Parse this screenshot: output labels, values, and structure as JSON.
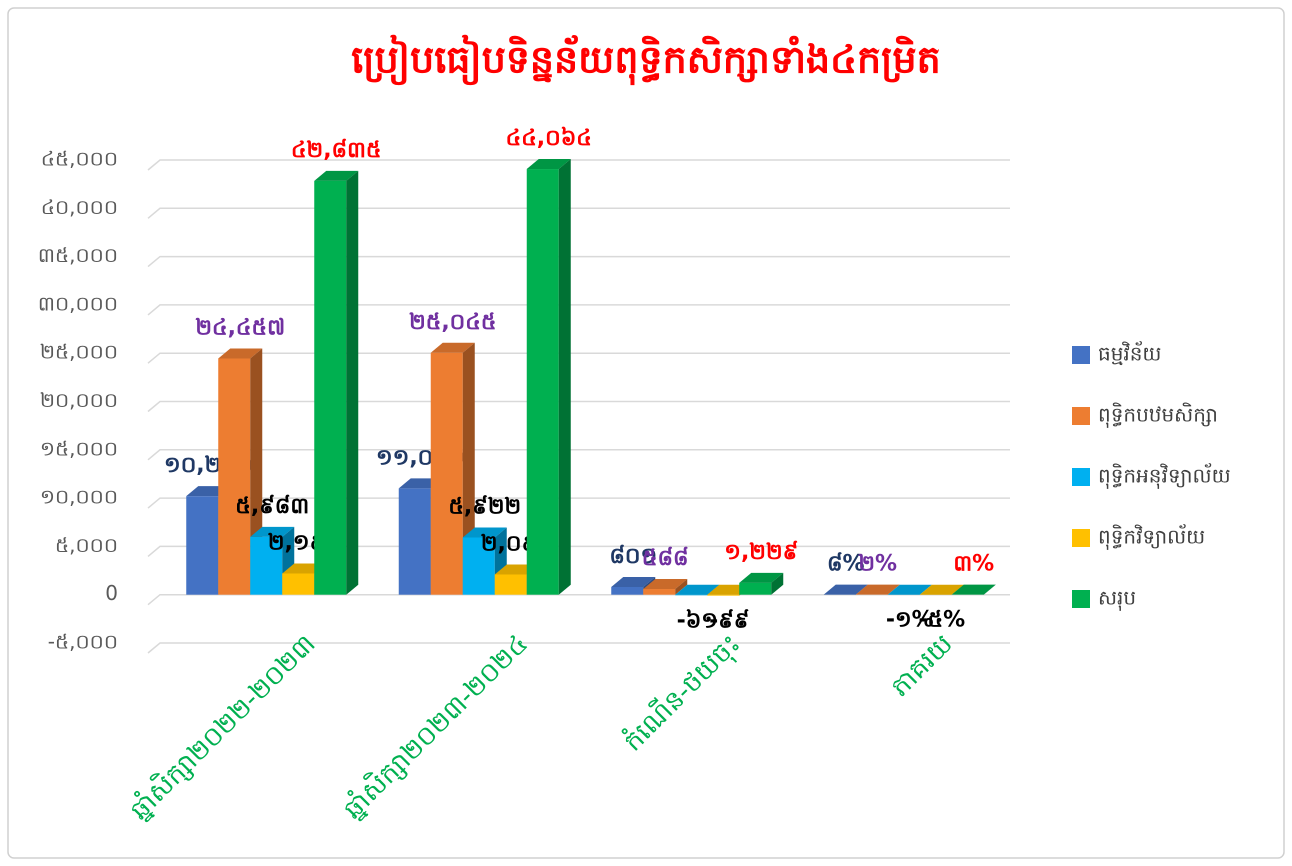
{
  "chart_data": {
    "type": "bar3d",
    "title": "ប្រៀបធៀបទិន្នន័យពុទ្ធិកសិក្សាទាំង៤កម្រិត",
    "categories": [
      "ឆ្នាំសិក្សា២០២២-២០២៣",
      "ឆ្នាំសិក្សា២០២៣-២០២៤",
      "កំណើន-ថយចុះ",
      "ភាគរយ"
    ],
    "series": [
      {
        "name": "ធម្មវិន័យ",
        "color": "#4472c4",
        "label_color": "#1f3864",
        "values": [
          10200,
          11001,
          801,
          8
        ],
        "value_labels": [
          "១០,២០០",
          "១១,០០១",
          "៨០១",
          "៨%"
        ]
      },
      {
        "name": "ពុទ្ធិកបឋមសិក្សា",
        "color": "#ed7d31",
        "label_color": "#7030a0",
        "values": [
          24457,
          25045,
          588,
          2
        ],
        "value_labels": [
          "២៤,៤៥៧",
          "២៥,០៤៥",
          "៥៨៨",
          "២%"
        ]
      },
      {
        "name": "ពុទ្ធិកអនុវិទ្យាល័យ",
        "color": "#00b0f0",
        "label_color": "#000000",
        "values": [
          5983,
          5922,
          -61,
          -1
        ],
        "value_labels": [
          "៥,៩៨៣",
          "៥,៩២២",
          "-៦១",
          "-១%"
        ]
      },
      {
        "name": "ពុទ្ធិកវិទ្យាល័យ",
        "color": "#ffc000",
        "label_color": "#000000",
        "values": [
          2195,
          2096,
          -99,
          -5
        ],
        "value_labels": [
          "២,១៩៥",
          "២,០៩៦",
          "-៩៩",
          "-៥%"
        ]
      },
      {
        "name": "សរុប",
        "color": "#00b050",
        "label_color": "#ff0000",
        "values": [
          42835,
          44064,
          1229,
          3
        ],
        "value_labels": [
          "៤២,៨៣៥",
          "៤៤,០៦៤",
          "១,២២៩",
          "៣%"
        ]
      }
    ],
    "ylim": [
      -5000,
      45000
    ],
    "yticks": [
      {
        "value": -5000,
        "label": "-៥,០០០"
      },
      0,
      {
        "value": 5000,
        "label": "៥,០០០"
      },
      {
        "value": 10000,
        "label": "១០,០០០"
      },
      {
        "value": 15000,
        "label": "១៥,០០០"
      },
      {
        "value": 20000,
        "label": "២០,០០០"
      },
      {
        "value": 25000,
        "label": "២៥,០០០"
      },
      {
        "value": 30000,
        "label": "៣០,០០០"
      },
      {
        "value": 35000,
        "label": "៣៥,០០០"
      },
      {
        "value": 40000,
        "label": "៤០,០០០"
      },
      {
        "value": 45000,
        "label": "៤៥,០០០"
      }
    ],
    "grid": true,
    "legend": "right"
  }
}
